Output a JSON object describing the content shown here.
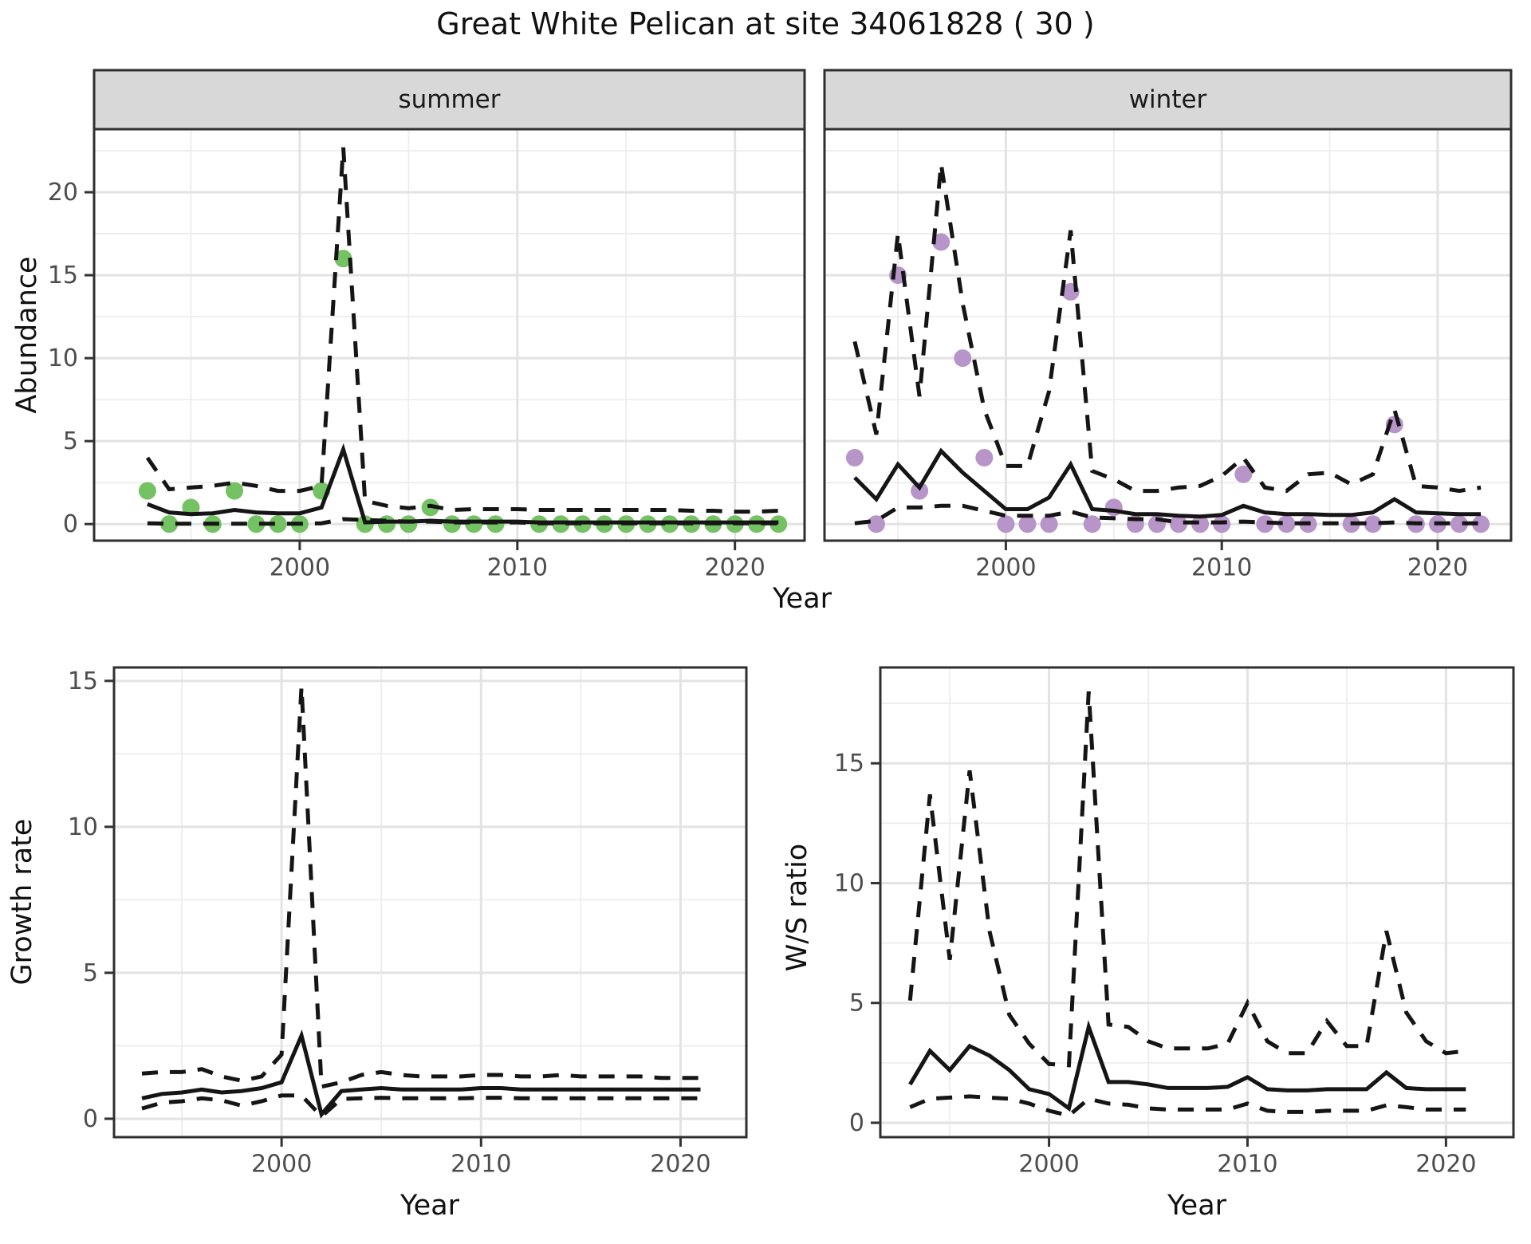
{
  "title": "Great White Pelican at site 34061828 ( 30 )",
  "colors": {
    "summer_point": "#74c263",
    "winter_point": "#b795c8",
    "line": "#151515",
    "grid_major": "#e3e3e3",
    "grid_minor": "#ededed",
    "strip_bg": "#d8d8d8",
    "panel_border": "#2f2f2f",
    "tick": "#333333",
    "tick_label": "#4d4d4d"
  },
  "chart_data": [
    {
      "name": "abundance-summer",
      "type": "line",
      "facet_label": "summer",
      "ylabel": "Abundance",
      "xlabel": "Year",
      "xlim": [
        1990.55,
        2023.2
      ],
      "ylim": [
        -1.0,
        23.8
      ],
      "yticks": [
        0,
        5,
        10,
        15,
        20
      ],
      "xticks": [
        2000,
        2010,
        2020
      ],
      "grid": true,
      "show_ytick_labels": true,
      "x": [
        1993,
        1994,
        1995,
        1996,
        1997,
        1998,
        1999,
        2000,
        2001,
        2002,
        2003,
        2004,
        2005,
        2006,
        2007,
        2008,
        2009,
        2010,
        2011,
        2012,
        2013,
        2014,
        2015,
        2016,
        2017,
        2018,
        2019,
        2020,
        2021,
        2022
      ],
      "series": [
        {
          "name": "observed",
          "style": "points",
          "color_key": "summer_point",
          "values": [
            2,
            0,
            1,
            0,
            2,
            0,
            0,
            0,
            2,
            16,
            0,
            0,
            0,
            1,
            0,
            0,
            0,
            null,
            0,
            0,
            0,
            0,
            0,
            0,
            0,
            0,
            0,
            0,
            0,
            0
          ]
        },
        {
          "name": "estimated mean",
          "style": "solid",
          "values": [
            1.2,
            0.7,
            0.6,
            0.65,
            0.85,
            0.7,
            0.65,
            0.65,
            1.0,
            4.5,
            0.1,
            0.15,
            0.15,
            0.2,
            0.15,
            0.15,
            0.15,
            0.15,
            0.1,
            0.1,
            0.1,
            0.1,
            0.1,
            0.1,
            0.1,
            0.1,
            0.1,
            0.1,
            0.1,
            0.1
          ]
        },
        {
          "name": "upper CI",
          "style": "dashed",
          "values": [
            4.0,
            2.1,
            2.2,
            2.3,
            2.5,
            2.3,
            2.0,
            2.0,
            2.3,
            22.7,
            1.4,
            1.1,
            0.95,
            1.1,
            0.85,
            0.9,
            0.9,
            0.9,
            0.85,
            0.85,
            0.85,
            0.85,
            0.85,
            0.85,
            0.85,
            0.8,
            0.8,
            0.75,
            0.75,
            0.8
          ]
        },
        {
          "name": "lower CI",
          "style": "dashed",
          "values": [
            0.05,
            0.02,
            0.02,
            0.02,
            0.02,
            0.02,
            0.02,
            0.02,
            0.05,
            0.3,
            0.25,
            0.2,
            0.15,
            0.15,
            0.1,
            0.1,
            0.1,
            0.1,
            0.05,
            0.05,
            0.05,
            0.05,
            0.05,
            0.05,
            0.05,
            0.05,
            0.05,
            0.05,
            0.05,
            0.05
          ]
        }
      ]
    },
    {
      "name": "abundance-winter",
      "type": "line",
      "facet_label": "winter",
      "ylabel": "Abundance",
      "xlabel": "Year",
      "xlim": [
        1991.6,
        2023.4
      ],
      "ylim": [
        -1.0,
        23.8
      ],
      "yticks": [
        0,
        5,
        10,
        15,
        20
      ],
      "xticks": [
        2000,
        2010,
        2020
      ],
      "grid": true,
      "show_ytick_labels": false,
      "x": [
        1993,
        1994,
        1995,
        1996,
        1997,
        1998,
        1999,
        2000,
        2001,
        2002,
        2003,
        2004,
        2005,
        2006,
        2007,
        2008,
        2009,
        2010,
        2011,
        2012,
        2013,
        2014,
        2015,
        2016,
        2017,
        2018,
        2019,
        2020,
        2021,
        2022
      ],
      "series": [
        {
          "name": "observed",
          "style": "points",
          "color_key": "winter_point",
          "values": [
            4,
            0,
            15,
            2,
            17,
            10,
            4,
            0,
            0,
            0,
            14,
            0,
            1,
            0,
            0,
            0,
            0,
            0,
            3,
            0,
            0,
            0,
            null,
            0,
            0,
            6,
            0,
            0,
            0,
            0
          ]
        },
        {
          "name": "estimated mean",
          "style": "solid",
          "values": [
            2.8,
            1.5,
            3.6,
            2.2,
            4.4,
            3.1,
            2.0,
            0.9,
            0.9,
            1.6,
            3.6,
            0.9,
            0.8,
            0.6,
            0.6,
            0.5,
            0.45,
            0.55,
            1.1,
            0.7,
            0.6,
            0.6,
            0.55,
            0.55,
            0.7,
            1.5,
            0.7,
            0.65,
            0.6,
            0.6
          ]
        },
        {
          "name": "upper CI",
          "style": "dashed",
          "values": [
            11,
            5.4,
            17.5,
            7.7,
            21.7,
            13.3,
            6.9,
            3.5,
            3.5,
            8,
            17.7,
            3.2,
            2.7,
            2.0,
            2.0,
            2.2,
            2.3,
            2.9,
            4.0,
            2.2,
            2.0,
            3.0,
            3.1,
            2.4,
            3.0,
            6.9,
            2.3,
            2.2,
            2.0,
            2.2
          ]
        },
        {
          "name": "lower CI",
          "style": "dashed",
          "values": [
            0.05,
            0.2,
            1.0,
            1.0,
            1.1,
            1.1,
            0.8,
            0.5,
            0.5,
            0.5,
            0.75,
            0.4,
            0.35,
            0.3,
            0.3,
            0.1,
            0.1,
            0.1,
            0.15,
            0.1,
            0.05,
            0.05,
            0.05,
            0.05,
            0.05,
            0.1,
            0.05,
            0.05,
            0.05,
            0.05
          ]
        }
      ]
    },
    {
      "name": "growth-rate",
      "type": "line",
      "facet_label": "",
      "ylabel": "Growth rate",
      "xlabel": "Year",
      "xlim": [
        1991.6,
        2023.3
      ],
      "ylim": [
        -0.63,
        15.46
      ],
      "yticks": [
        0,
        5,
        10,
        15
      ],
      "xticks": [
        2000,
        2010,
        2020
      ],
      "grid": true,
      "show_ytick_labels": true,
      "x": [
        1993,
        1994,
        1995,
        1996,
        1997,
        1998,
        1999,
        2000,
        2001,
        2002,
        2003,
        2004,
        2005,
        2006,
        2007,
        2008,
        2009,
        2010,
        2011,
        2012,
        2013,
        2014,
        2015,
        2016,
        2017,
        2018,
        2019,
        2020,
        2021
      ],
      "series": [
        {
          "name": "estimated mean",
          "style": "solid",
          "values": [
            0.7,
            0.85,
            0.9,
            1.0,
            0.9,
            0.95,
            1.05,
            1.25,
            2.85,
            0.15,
            0.95,
            1.0,
            1.05,
            1.0,
            1.0,
            1.0,
            1.0,
            1.05,
            1.05,
            1.0,
            1.0,
            1.0,
            1.0,
            1.0,
            1.0,
            1.0,
            1.0,
            1.0,
            1.0
          ]
        },
        {
          "name": "upper CI",
          "style": "dashed",
          "values": [
            1.55,
            1.6,
            1.6,
            1.7,
            1.45,
            1.3,
            1.45,
            2.2,
            14.8,
            1.1,
            1.25,
            1.5,
            1.6,
            1.5,
            1.45,
            1.45,
            1.45,
            1.5,
            1.5,
            1.45,
            1.45,
            1.5,
            1.45,
            1.45,
            1.45,
            1.45,
            1.4,
            1.4,
            1.4
          ]
        },
        {
          "name": "lower CI",
          "style": "dashed",
          "values": [
            0.35,
            0.55,
            0.6,
            0.7,
            0.63,
            0.45,
            0.6,
            0.8,
            0.8,
            0.08,
            0.68,
            0.7,
            0.72,
            0.7,
            0.7,
            0.7,
            0.7,
            0.72,
            0.72,
            0.7,
            0.7,
            0.7,
            0.7,
            0.7,
            0.7,
            0.7,
            0.7,
            0.7,
            0.7
          ]
        }
      ]
    },
    {
      "name": "ws-ratio",
      "type": "line",
      "facet_label": "",
      "ylabel": "W/S ratio",
      "xlabel": "Year",
      "xlim": [
        1991.5,
        2023.4
      ],
      "ylim": [
        -0.6,
        19.0
      ],
      "yticks": [
        0,
        5,
        10,
        15
      ],
      "xticks": [
        2000,
        2010,
        2020
      ],
      "grid": true,
      "show_ytick_labels": true,
      "x": [
        1993,
        1994,
        1995,
        1996,
        1997,
        1998,
        1999,
        2000,
        2001,
        2002,
        2003,
        2004,
        2005,
        2006,
        2007,
        2008,
        2009,
        2010,
        2011,
        2012,
        2013,
        2014,
        2015,
        2016,
        2017,
        2018,
        2019,
        2020,
        2021
      ],
      "series": [
        {
          "name": "estimated mean",
          "style": "solid",
          "values": [
            1.6,
            3.0,
            2.2,
            3.2,
            2.8,
            2.2,
            1.4,
            1.2,
            0.6,
            4.0,
            1.7,
            1.7,
            1.6,
            1.45,
            1.45,
            1.45,
            1.5,
            1.9,
            1.4,
            1.35,
            1.35,
            1.4,
            1.4,
            1.4,
            2.1,
            1.45,
            1.4,
            1.4,
            1.4
          ]
        },
        {
          "name": "upper CI",
          "style": "dashed",
          "values": [
            5.1,
            13.7,
            6.8,
            14.7,
            8.0,
            4.5,
            3.3,
            2.45,
            2.4,
            18.0,
            4.1,
            4.0,
            3.4,
            3.1,
            3.1,
            3.1,
            3.3,
            5.0,
            3.4,
            2.9,
            2.9,
            4.25,
            3.2,
            3.2,
            8.0,
            4.6,
            3.4,
            2.9,
            3.0
          ]
        },
        {
          "name": "lower CI",
          "style": "dashed",
          "values": [
            0.65,
            1.0,
            1.05,
            1.1,
            1.05,
            1.0,
            0.8,
            0.5,
            0.3,
            1.0,
            0.8,
            0.75,
            0.6,
            0.55,
            0.55,
            0.55,
            0.55,
            0.8,
            0.5,
            0.45,
            0.45,
            0.5,
            0.5,
            0.5,
            0.73,
            0.65,
            0.55,
            0.55,
            0.55
          ]
        }
      ]
    }
  ]
}
